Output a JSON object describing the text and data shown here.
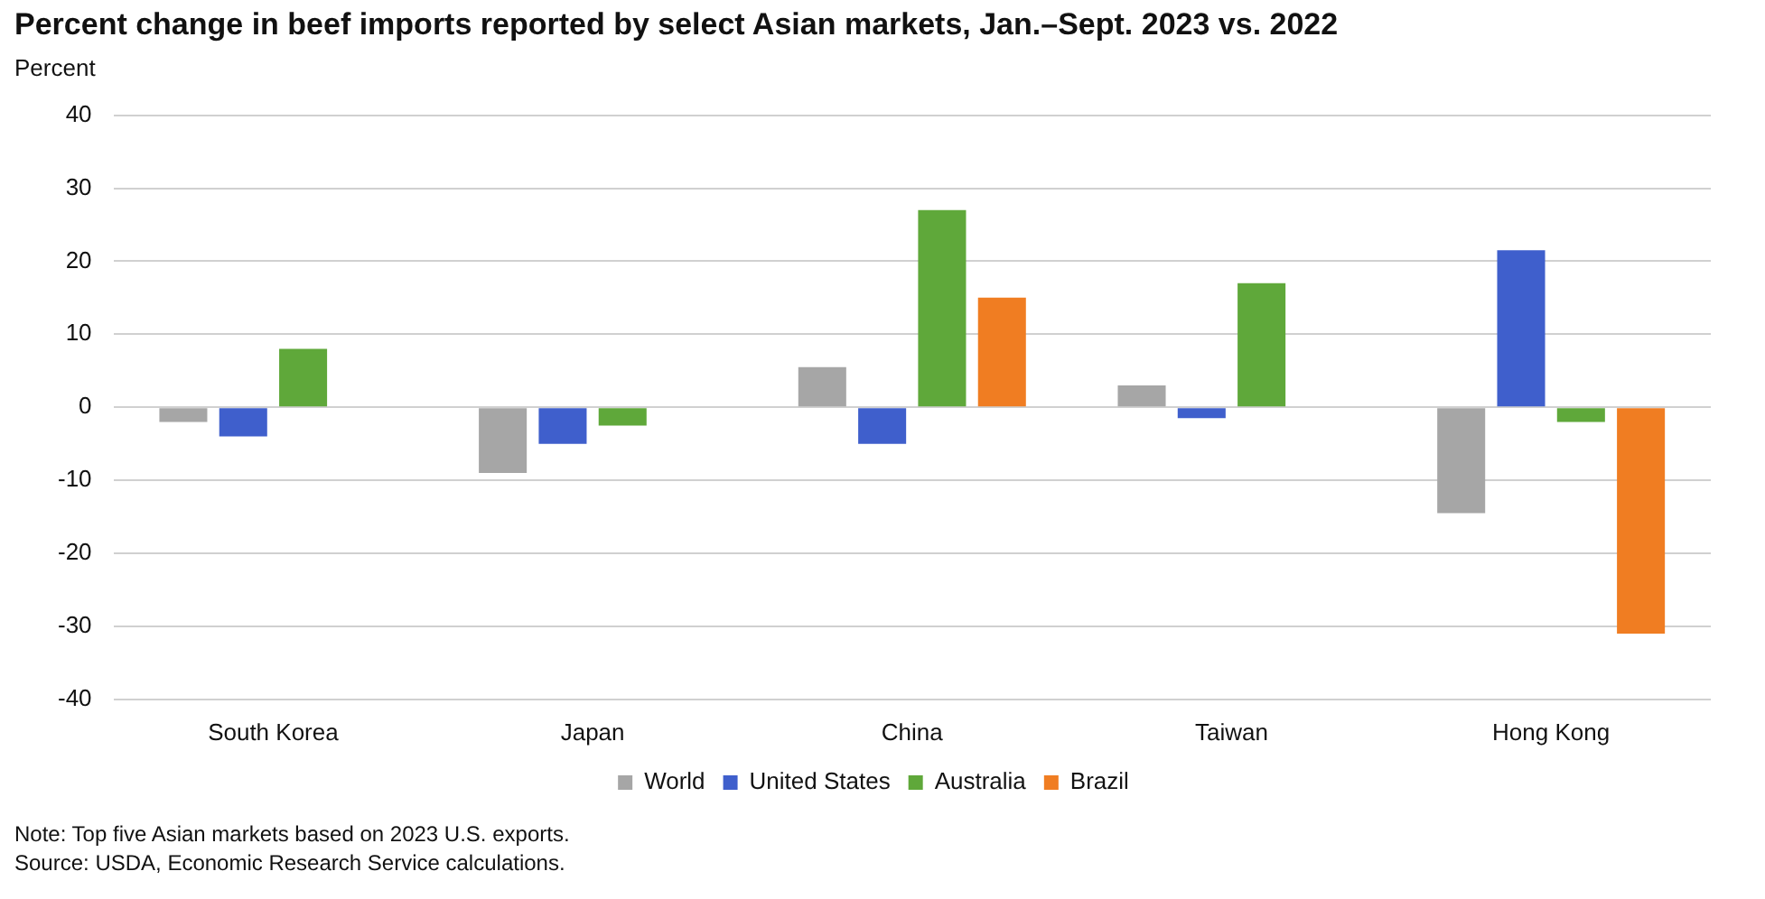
{
  "chart_data": {
    "type": "bar",
    "title": "Percent change in beef imports reported by select Asian markets, Jan.–Sept. 2023 vs. 2022",
    "ylabel": "Percent",
    "categories": [
      "South Korea",
      "Japan",
      "China",
      "Taiwan",
      "Hong Kong"
    ],
    "series": [
      {
        "name": "World",
        "color": "#a6a6a6",
        "values": [
          -2,
          -9,
          5.5,
          3,
          -14.5
        ]
      },
      {
        "name": "United States",
        "color": "#3f5fcc",
        "values": [
          -4,
          -5,
          -5,
          -1.5,
          21.5
        ]
      },
      {
        "name": "Australia",
        "color": "#5fa83a",
        "values": [
          8,
          -2.5,
          27,
          17,
          -2
        ]
      },
      {
        "name": "Brazil",
        "color": "#f07d22",
        "values": [
          null,
          null,
          15,
          null,
          -31
        ]
      }
    ],
    "ylim": [
      -40,
      40
    ],
    "yticks": [
      -40,
      -30,
      -20,
      -10,
      0,
      10,
      20,
      30,
      40
    ],
    "grid": "y",
    "legend": "bottom",
    "annotations": [
      "Note: Top five Asian markets based on 2023 U.S. exports.",
      "Source: USDA, Economic Research Service calculations."
    ]
  }
}
